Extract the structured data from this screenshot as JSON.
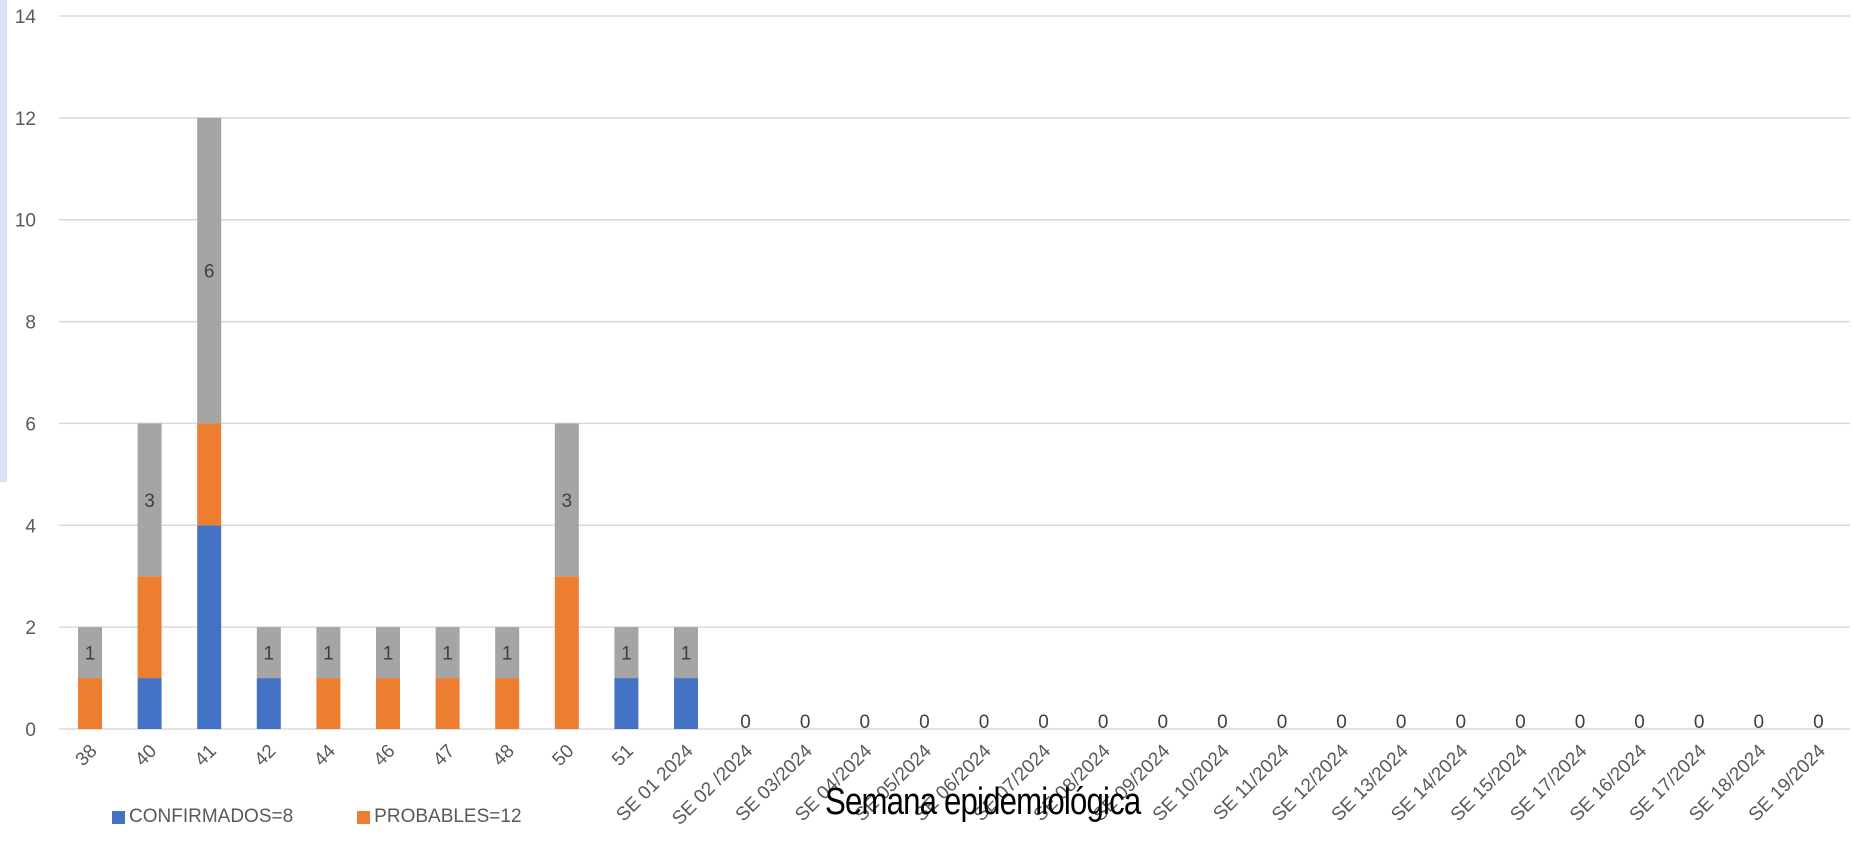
{
  "chart_data": {
    "type": "bar",
    "stacked": true,
    "xlabel": "Semana epidemiológica",
    "ylabel": "",
    "ylim": [
      0,
      14
    ],
    "yticks": [
      0,
      2,
      4,
      6,
      8,
      10,
      12,
      14
    ],
    "grid": true,
    "legend_position": "bottom-left",
    "categories": [
      "38",
      "40",
      "41",
      "42",
      "44",
      "46",
      "47",
      "48",
      "50",
      "51",
      "SE 01 2024",
      "SE 02 /2024",
      "SE 03/2024",
      "SE 04/2024",
      "SE 05/2024",
      "SE 06/2024",
      "SE 07/2024",
      "SE 08/2024",
      "SE 09/2024",
      "SE 10/2024",
      "SE 11/2024",
      "SE 12/2024",
      "SE 13/2024",
      "SE 14/2024",
      "SE 15/2024",
      "SE 17/2024",
      "SE 16/2024",
      "SE 17/2024",
      "SE 18/2024",
      "SE 19/2024"
    ],
    "series": [
      {
        "name": "CONFIRMADOS=8",
        "color": "#4472c4",
        "values": [
          0,
          1,
          4,
          1,
          0,
          0,
          0,
          0,
          0,
          1,
          1,
          0,
          0,
          0,
          0,
          0,
          0,
          0,
          0,
          0,
          0,
          0,
          0,
          0,
          0,
          0,
          0,
          0,
          0,
          0
        ]
      },
      {
        "name": "PROBABLES=12",
        "color": "#ed7d31",
        "values": [
          1,
          2,
          2,
          0,
          1,
          1,
          1,
          1,
          3,
          0,
          0,
          0,
          0,
          0,
          0,
          0,
          0,
          0,
          0,
          0,
          0,
          0,
          0,
          0,
          0,
          0,
          0,
          0,
          0,
          0
        ]
      },
      {
        "color": "#a5a5a5",
        "values": [
          1,
          3,
          6,
          1,
          1,
          1,
          1,
          1,
          3,
          1,
          1,
          0,
          0,
          0,
          0,
          0,
          0,
          0,
          0,
          0,
          0,
          0,
          0,
          0,
          0,
          0,
          0,
          0,
          0,
          0
        ]
      }
    ],
    "top_series_labels": [
      "1",
      "3",
      "6",
      "1",
      "1",
      "1",
      "1",
      "1",
      "3",
      "1",
      "1",
      "0",
      "0",
      "0",
      "0",
      "0",
      "0",
      "0",
      "0",
      "0",
      "0",
      "0",
      "0",
      "0",
      "0",
      "0",
      "0",
      "0",
      "0",
      "0"
    ],
    "colors": {
      "grid": "#d9d9d9",
      "axis": "#d9d9d9",
      "stripe": "#d9e3f3"
    }
  }
}
